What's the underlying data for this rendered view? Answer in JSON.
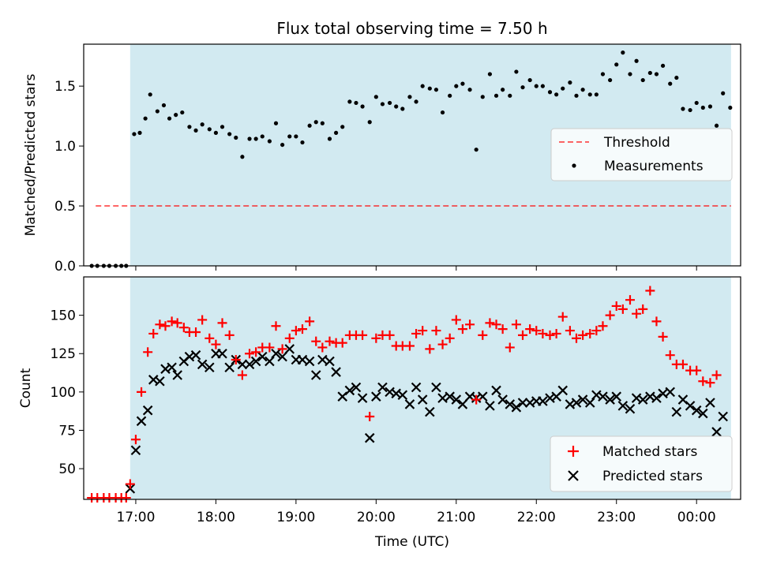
{
  "figure": {
    "title": "Flux total observing time = 7.50 h",
    "xlabel": "Time (UTC)",
    "x_ticks": [
      "17:00",
      "18:00",
      "19:00",
      "20:00",
      "21:00",
      "22:00",
      "23:00",
      "00:00"
    ]
  },
  "colors": {
    "span": "#add8e6",
    "threshold": "#ff0000",
    "measurement": "#000000",
    "matched": "#ff0000",
    "predicted": "#000000"
  },
  "chart_data": [
    {
      "type": "scatter",
      "ylabel": "Matched/Predicted stars",
      "xlim": [
        16.35,
        24.55
      ],
      "ylim": [
        0,
        1.85
      ],
      "y_ticks": [
        0.0,
        0.5,
        1.0,
        1.5
      ],
      "y_tick_labels": [
        "0.0",
        "0.5",
        "1.0",
        "1.5"
      ],
      "observing_span": [
        16.93,
        24.43
      ],
      "threshold": {
        "y": 0.5,
        "x_range": [
          16.5,
          24.43
        ],
        "label": "Threshold"
      },
      "legend": [
        "Threshold",
        "Measurements"
      ],
      "legend_position": "center-right",
      "series": [
        {
          "name": "Measurements",
          "x": [
            16.45,
            16.52,
            16.6,
            16.67,
            16.75,
            16.82,
            16.88,
            16.98,
            17.05,
            17.12,
            17.18,
            17.27,
            17.35,
            17.42,
            17.5,
            17.58,
            17.67,
            17.75,
            17.83,
            17.92,
            18.0,
            18.08,
            18.17,
            18.25,
            18.33,
            18.42,
            18.5,
            18.58,
            18.67,
            18.75,
            18.83,
            18.92,
            19.0,
            19.08,
            19.17,
            19.25,
            19.33,
            19.42,
            19.5,
            19.58,
            19.67,
            19.75,
            19.83,
            19.92,
            20.0,
            20.08,
            20.17,
            20.25,
            20.33,
            20.42,
            20.5,
            20.58,
            20.67,
            20.75,
            20.83,
            20.92,
            21.0,
            21.08,
            21.17,
            21.25,
            21.33,
            21.42,
            21.5,
            21.58,
            21.67,
            21.75,
            21.83,
            21.92,
            22.0,
            22.08,
            22.17,
            22.25,
            22.33,
            22.42,
            22.5,
            22.58,
            22.67,
            22.75,
            22.83,
            22.92,
            23.0,
            23.08,
            23.17,
            23.25,
            23.33,
            23.42,
            23.5,
            23.58,
            23.67,
            23.75,
            23.83,
            23.92,
            24.0,
            24.08,
            24.17,
            24.25,
            24.33,
            24.42
          ],
          "y": [
            0,
            0,
            0,
            0,
            0,
            0,
            0,
            1.1,
            1.11,
            1.23,
            1.43,
            1.29,
            1.34,
            1.23,
            1.26,
            1.28,
            1.16,
            1.13,
            1.18,
            1.14,
            1.11,
            1.16,
            1.1,
            1.07,
            0.91,
            1.06,
            1.06,
            1.08,
            1.04,
            1.19,
            1.01,
            1.08,
            1.08,
            1.03,
            1.17,
            1.2,
            1.19,
            1.06,
            1.11,
            1.16,
            1.37,
            1.36,
            1.33,
            1.2,
            1.41,
            1.35,
            1.36,
            1.33,
            1.31,
            1.41,
            1.37,
            1.5,
            1.48,
            1.47,
            1.28,
            1.42,
            1.5,
            1.52,
            1.47,
            0.97,
            1.41,
            1.6,
            1.42,
            1.47,
            1.42,
            1.62,
            1.49,
            1.55,
            1.5,
            1.5,
            1.45,
            1.43,
            1.48,
            1.53,
            1.42,
            1.47,
            1.43,
            1.43,
            1.6,
            1.55,
            1.68,
            1.78,
            1.6,
            1.71,
            1.55,
            1.61,
            1.6,
            1.67,
            1.52,
            1.57,
            1.31,
            1.3,
            1.36,
            1.32,
            1.33,
            1.17,
            1.44,
            1.32
          ]
        }
      ]
    },
    {
      "type": "scatter",
      "ylabel": "Count",
      "xlim": [
        16.35,
        24.55
      ],
      "ylim": [
        30,
        175
      ],
      "y_ticks": [
        50,
        75,
        100,
        125,
        150
      ],
      "y_tick_labels": [
        "50",
        "75",
        "100",
        "125",
        "150"
      ],
      "observing_span": [
        16.93,
        24.43
      ],
      "legend": [
        "Matched stars",
        "Predicted stars"
      ],
      "legend_position": "lower-right",
      "x": [
        16.45,
        16.52,
        16.6,
        16.67,
        16.75,
        16.82,
        16.88,
        16.93,
        17.0,
        17.07,
        17.15,
        17.22,
        17.3,
        17.37,
        17.45,
        17.52,
        17.6,
        17.67,
        17.75,
        17.83,
        17.92,
        18.0,
        18.08,
        18.17,
        18.25,
        18.33,
        18.42,
        18.5,
        18.58,
        18.67,
        18.75,
        18.83,
        18.92,
        19.0,
        19.08,
        19.17,
        19.25,
        19.33,
        19.42,
        19.5,
        19.58,
        19.67,
        19.75,
        19.83,
        19.92,
        20.0,
        20.08,
        20.17,
        20.25,
        20.33,
        20.42,
        20.5,
        20.58,
        20.67,
        20.75,
        20.83,
        20.92,
        21.0,
        21.08,
        21.17,
        21.25,
        21.33,
        21.42,
        21.5,
        21.58,
        21.67,
        21.75,
        21.83,
        21.92,
        22.0,
        22.08,
        22.17,
        22.25,
        22.33,
        22.42,
        22.5,
        22.58,
        22.67,
        22.75,
        22.83,
        22.92,
        23.0,
        23.08,
        23.17,
        23.25,
        23.33,
        23.42,
        23.5,
        23.58,
        23.67,
        23.75,
        23.83,
        23.92,
        24.0,
        24.08,
        24.17,
        24.25,
        24.33,
        24.42
      ],
      "series": [
        {
          "name": "Matched stars",
          "marker": "plus",
          "y": [
            31,
            31,
            31,
            31,
            31,
            31,
            31,
            40,
            69,
            100,
            126,
            138,
            144,
            143,
            146,
            145,
            142,
            139,
            139,
            147,
            135,
            131,
            145,
            137,
            121,
            111,
            125,
            126,
            129,
            129,
            143,
            128,
            135,
            140,
            141,
            146,
            133,
            129,
            133,
            132,
            132,
            137,
            137,
            137,
            84,
            135,
            137,
            137,
            130,
            130,
            130,
            138,
            140,
            128,
            140,
            131,
            135,
            147,
            141,
            144,
            95,
            137,
            145,
            144,
            141,
            129,
            144,
            137,
            141,
            140,
            138,
            137,
            138,
            149,
            140,
            135,
            137,
            138,
            140,
            143,
            150,
            156,
            154,
            160,
            151,
            154,
            166,
            146,
            136,
            124,
            118,
            118,
            114,
            114,
            107,
            106,
            111
          ]
        },
        {
          "name": "Predicted stars",
          "marker": "x",
          "y": [
            null,
            null,
            null,
            null,
            null,
            null,
            null,
            37,
            62,
            81,
            88,
            108,
            107,
            115,
            116,
            111,
            120,
            123,
            124,
            118,
            116,
            125,
            125,
            116,
            121,
            118,
            118,
            120,
            123,
            120,
            125,
            123,
            128,
            121,
            121,
            120,
            111,
            121,
            120,
            113,
            97,
            101,
            103,
            96,
            70,
            97,
            103,
            100,
            99,
            98,
            92,
            103,
            95,
            87,
            103,
            96,
            97,
            95,
            92,
            97,
            96,
            97,
            91,
            101,
            95,
            92,
            90,
            93,
            93,
            94,
            94,
            96,
            97,
            101,
            92,
            93,
            95,
            93,
            98,
            97,
            95,
            97,
            91,
            89,
            96,
            95,
            97,
            96,
            99,
            100,
            87,
            95,
            91,
            88,
            86,
            93,
            74,
            84
          ]
        }
      ]
    }
  ]
}
